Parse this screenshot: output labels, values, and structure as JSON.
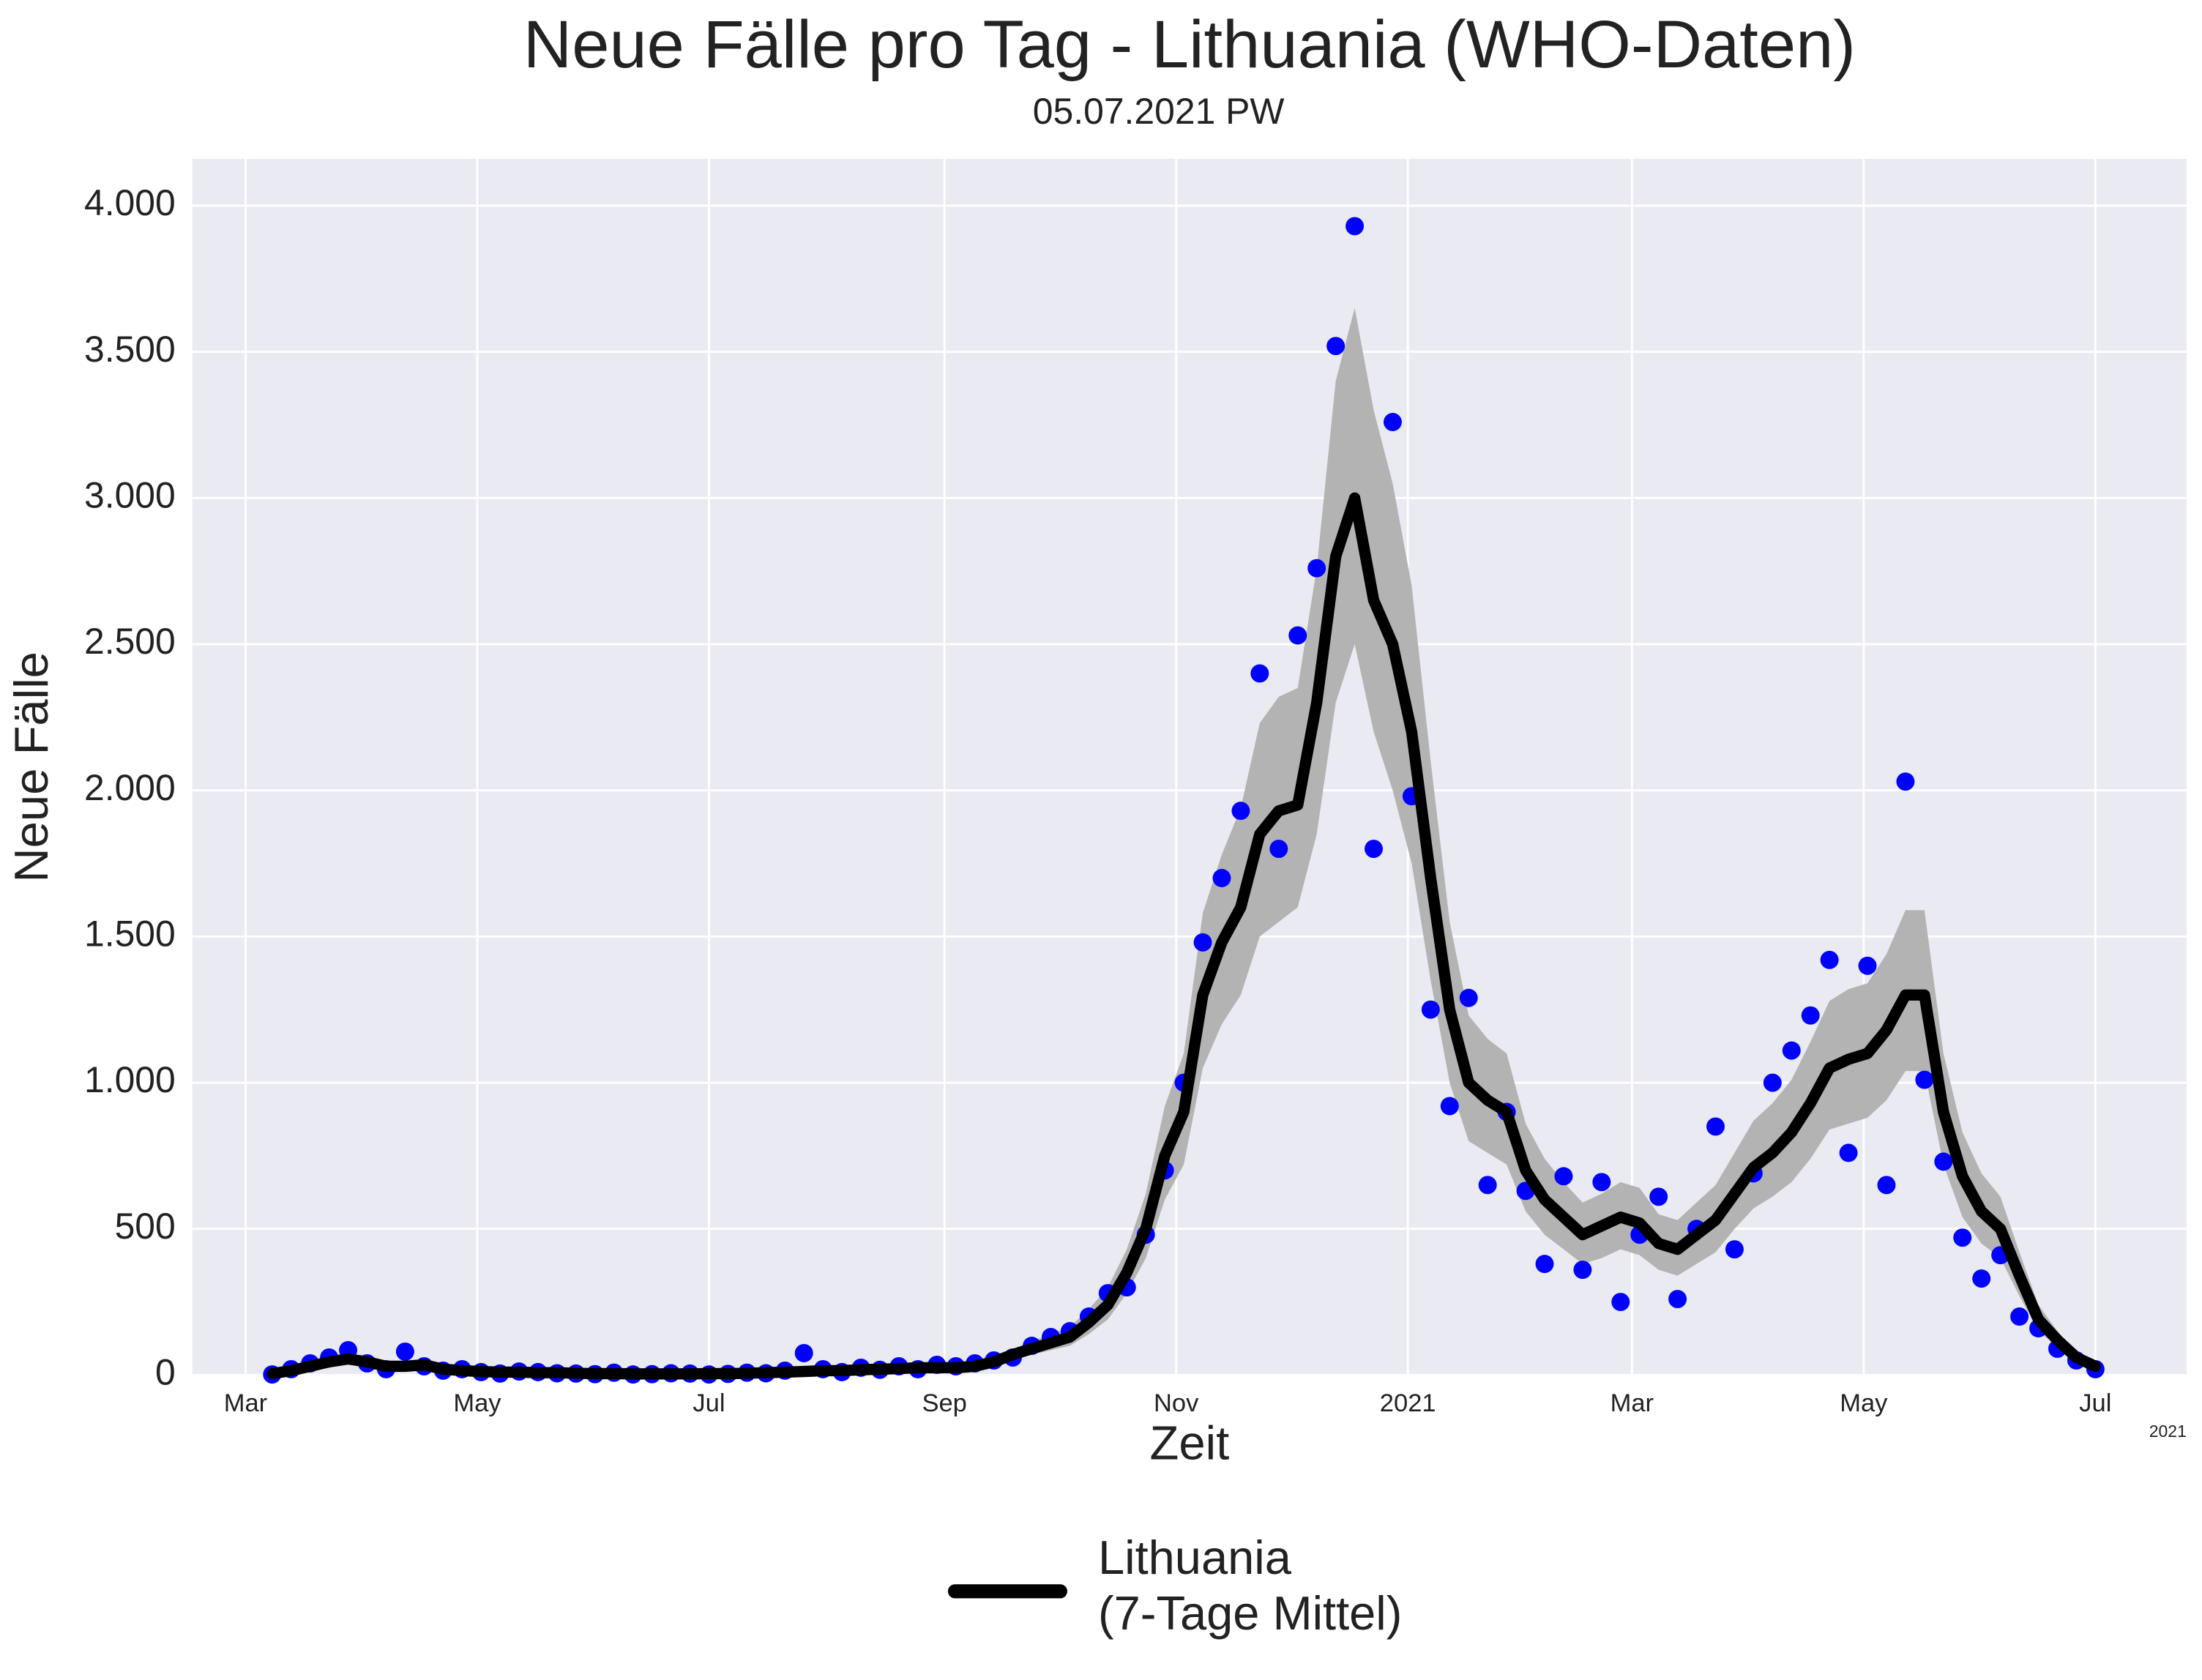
{
  "chart_data": {
    "type": "line",
    "title": "Neue Fälle pro Tag - Lithuania (WHO-Daten)",
    "subtitle": "05.07.2021 PW",
    "x_label": "Zeit",
    "y_label": "Neue Fälle",
    "x_offset_label": "2021",
    "x": [
      7,
      12,
      17,
      22,
      27,
      32,
      37,
      42,
      47,
      52,
      57,
      62,
      67,
      72,
      77,
      82,
      87,
      92,
      97,
      102,
      107,
      112,
      117,
      122,
      127,
      132,
      137,
      142,
      147,
      152,
      157,
      162,
      167,
      172,
      177,
      182,
      187,
      192,
      197,
      202,
      207,
      212,
      217,
      222,
      227,
      232,
      237,
      242,
      247,
      252,
      257,
      262,
      267,
      272,
      277,
      282,
      287,
      292,
      297,
      302,
      307,
      312,
      317,
      322,
      327,
      332,
      337,
      342,
      347,
      352,
      357,
      362,
      367,
      372,
      377,
      382,
      387,
      392,
      397,
      402,
      407,
      412,
      417,
      422,
      427,
      432,
      437,
      442,
      447,
      452,
      457,
      462,
      467,
      472,
      477,
      482,
      487
    ],
    "series": [
      {
        "name": "Lithuania\n(7-Tage Mittel)",
        "color": "#000000",
        "values": [
          5,
          15,
          30,
          45,
          55,
          45,
          30,
          30,
          35,
          20,
          15,
          12,
          10,
          10,
          8,
          8,
          6,
          5,
          5,
          4,
          4,
          4,
          4,
          5,
          5,
          6,
          8,
          10,
          12,
          15,
          15,
          18,
          20,
          22,
          25,
          25,
          25,
          30,
          45,
          70,
          90,
          110,
          130,
          180,
          240,
          350,
          500,
          750,
          900,
          1300,
          1480,
          1600,
          1850,
          1930,
          1950,
          2300,
          2800,
          3000,
          2650,
          2500,
          2200,
          1700,
          1250,
          1000,
          940,
          900,
          700,
          600,
          540,
          480,
          510,
          540,
          520,
          450,
          430,
          480,
          530,
          620,
          710,
          760,
          830,
          930,
          1050,
          1080,
          1100,
          1180,
          1300,
          1300,
          900,
          680,
          560,
          500,
          340,
          190,
          120,
          60,
          30
        ]
      }
    ],
    "band": {
      "color": "#b3b3b3",
      "lower": [
        3,
        10,
        20,
        35,
        40,
        35,
        22,
        22,
        25,
        15,
        10,
        8,
        7,
        7,
        6,
        6,
        4,
        4,
        4,
        3,
        3,
        3,
        3,
        4,
        4,
        4,
        6,
        7,
        8,
        10,
        10,
        13,
        15,
        16,
        18,
        18,
        18,
        22,
        35,
        55,
        70,
        85,
        100,
        140,
        190,
        280,
        400,
        600,
        720,
        1050,
        1200,
        1300,
        1500,
        1550,
        1600,
        1850,
        2300,
        2500,
        2200,
        2000,
        1750,
        1350,
        1000,
        800,
        760,
        720,
        560,
        480,
        430,
        380,
        400,
        430,
        410,
        360,
        340,
        380,
        420,
        500,
        570,
        610,
        660,
        740,
        840,
        860,
        880,
        940,
        1040,
        1040,
        720,
        540,
        450,
        400,
        270,
        150,
        95,
        45,
        20
      ],
      "upper": [
        8,
        22,
        42,
        60,
        72,
        60,
        40,
        40,
        45,
        28,
        20,
        17,
        14,
        14,
        11,
        11,
        8,
        7,
        7,
        6,
        6,
        6,
        6,
        7,
        7,
        8,
        11,
        13,
        16,
        20,
        20,
        24,
        26,
        29,
        33,
        33,
        33,
        40,
        58,
        90,
        115,
        140,
        165,
        225,
        300,
        430,
        620,
        920,
        1100,
        1580,
        1780,
        1940,
        2230,
        2320,
        2350,
        2760,
        3400,
        3650,
        3300,
        3050,
        2700,
        2100,
        1550,
        1230,
        1150,
        1100,
        860,
        740,
        660,
        590,
        620,
        660,
        640,
        550,
        530,
        590,
        650,
        760,
        870,
        930,
        1010,
        1140,
        1280,
        1320,
        1340,
        1440,
        1590,
        1590,
        1100,
        830,
        690,
        610,
        420,
        240,
        150,
        80,
        40
      ]
    },
    "points": {
      "color": "#0000ff",
      "values": [
        2,
        20,
        40,
        60,
        85,
        40,
        20,
        80,
        30,
        15,
        20,
        10,
        5,
        12,
        10,
        6,
        5,
        3,
        8,
        2,
        3,
        6,
        5,
        2,
        4,
        8,
        6,
        15,
        75,
        20,
        10,
        25,
        18,
        30,
        20,
        35,
        30,
        40,
        50,
        60,
        100,
        130,
        150,
        200,
        280,
        300,
        480,
        700,
        1000,
        1480,
        1700,
        1930,
        2400,
        1800,
        2530,
        2760,
        3520,
        3930,
        1800,
        3260,
        1980,
        1250,
        920,
        1290,
        650,
        900,
        630,
        380,
        680,
        360,
        660,
        250,
        480,
        610,
        260,
        500,
        850,
        430,
        690,
        1000,
        1110,
        1230,
        1420,
        760,
        1400,
        650,
        2030,
        1010,
        730,
        470,
        330,
        410,
        200,
        160,
        90,
        50,
        20
      ]
    },
    "xlim": [
      -14,
      511
    ],
    "xticks": [
      {
        "value": 0,
        "label": "Mar"
      },
      {
        "value": 61,
        "label": "May"
      },
      {
        "value": 122,
        "label": "Jul"
      },
      {
        "value": 184,
        "label": "Sep"
      },
      {
        "value": 245,
        "label": "Nov"
      },
      {
        "value": 306,
        "label": "2021"
      },
      {
        "value": 365,
        "label": "Mar"
      },
      {
        "value": 426,
        "label": "May"
      },
      {
        "value": 487,
        "label": "Jul"
      }
    ],
    "ylim": [
      0,
      4160
    ],
    "yticks": [
      0,
      500,
      {
        "value": 1000,
        "label": "1.000"
      },
      {
        "value": 1500,
        "label": "1.500"
      },
      {
        "value": 2000,
        "label": "2.000"
      },
      {
        "value": 2500,
        "label": "2.500"
      },
      {
        "value": 3000,
        "label": "3.000"
      },
      {
        "value": 3500,
        "label": "3.500"
      },
      {
        "value": 4000,
        "label": "4.000"
      }
    ],
    "grid": true,
    "legend": "bottom"
  }
}
